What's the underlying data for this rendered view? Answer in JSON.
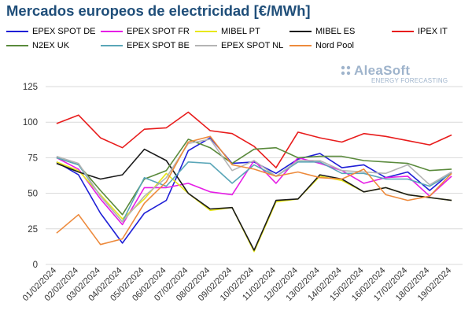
{
  "chart_data": {
    "type": "line",
    "title": "Mercados europeos de electricidad [€/MWh]",
    "xlabel": "",
    "ylabel": "",
    "ylim": [
      0,
      125
    ],
    "yticks": [
      0,
      25,
      50,
      75,
      100,
      125
    ],
    "grid": true,
    "legend_position": "top",
    "categories": [
      "01/02/2024",
      "02/02/2024",
      "03/02/2024",
      "04/02/2024",
      "05/02/2024",
      "06/02/2024",
      "07/02/2024",
      "08/02/2024",
      "09/02/2024",
      "10/02/2024",
      "11/02/2024",
      "12/02/2024",
      "13/02/2024",
      "14/02/2024",
      "15/02/2024",
      "16/02/2024",
      "17/02/2024",
      "18/02/2024",
      "19/02/2024"
    ],
    "series": [
      {
        "name": "EPEX SPOT DE",
        "color": "#1f1fd6",
        "values": [
          72,
          63,
          36,
          15,
          36,
          45,
          80,
          89,
          71,
          72,
          64,
          74,
          78,
          68,
          70,
          61,
          65,
          52,
          65
        ]
      },
      {
        "name": "EPEX SPOT FR",
        "color": "#e61ee6",
        "values": [
          75,
          67,
          46,
          28,
          54,
          54,
          57,
          51,
          49,
          73,
          57,
          75,
          71,
          66,
          57,
          61,
          62,
          48,
          62
        ]
      },
      {
        "name": "MIBEL PT",
        "color": "#e8e81a",
        "values": [
          72,
          66,
          49,
          32,
          46,
          64,
          50,
          38,
          40,
          9,
          44,
          46,
          62,
          59,
          51,
          54,
          49,
          47,
          45
        ]
      },
      {
        "name": "MIBEL ES",
        "color": "#1a1a1a",
        "values": [
          71,
          65,
          60,
          63,
          81,
          73,
          50,
          39,
          40,
          10,
          45,
          46,
          63,
          60,
          51,
          54,
          49,
          47,
          45
        ]
      },
      {
        "name": "IPEX IT",
        "color": "#e81c1c",
        "values": [
          99,
          105,
          89,
          82,
          95,
          96,
          107,
          94,
          92,
          83,
          68,
          93,
          89,
          86,
          92,
          90,
          87,
          84,
          91
        ]
      },
      {
        "name": "N2EX UK",
        "color": "#5a8a3c",
        "values": [
          75,
          70,
          52,
          35,
          60,
          66,
          88,
          82,
          71,
          81,
          82,
          75,
          76,
          76,
          73,
          72,
          71,
          66,
          67
        ]
      },
      {
        "name": "EPEX SPOT BE",
        "color": "#5aa6b8",
        "values": [
          75,
          70,
          48,
          30,
          61,
          55,
          72,
          71,
          57,
          70,
          62,
          72,
          72,
          64,
          64,
          60,
          60,
          55,
          64
        ]
      },
      {
        "name": "EPEX SPOT NL",
        "color": "#b4b4b4",
        "values": [
          76,
          71,
          48,
          30,
          48,
          61,
          85,
          88,
          66,
          73,
          62,
          73,
          73,
          66,
          65,
          64,
          70,
          56,
          65
        ]
      },
      {
        "name": "Nord Pool",
        "color": "#ed8a3c",
        "values": [
          22,
          35,
          14,
          18,
          43,
          58,
          86,
          90,
          70,
          67,
          62,
          65,
          61,
          60,
          67,
          49,
          45,
          48,
          64
        ]
      }
    ]
  },
  "logo": {
    "main": "AleaSoft",
    "sub": "ENERGY FORECASTING"
  }
}
